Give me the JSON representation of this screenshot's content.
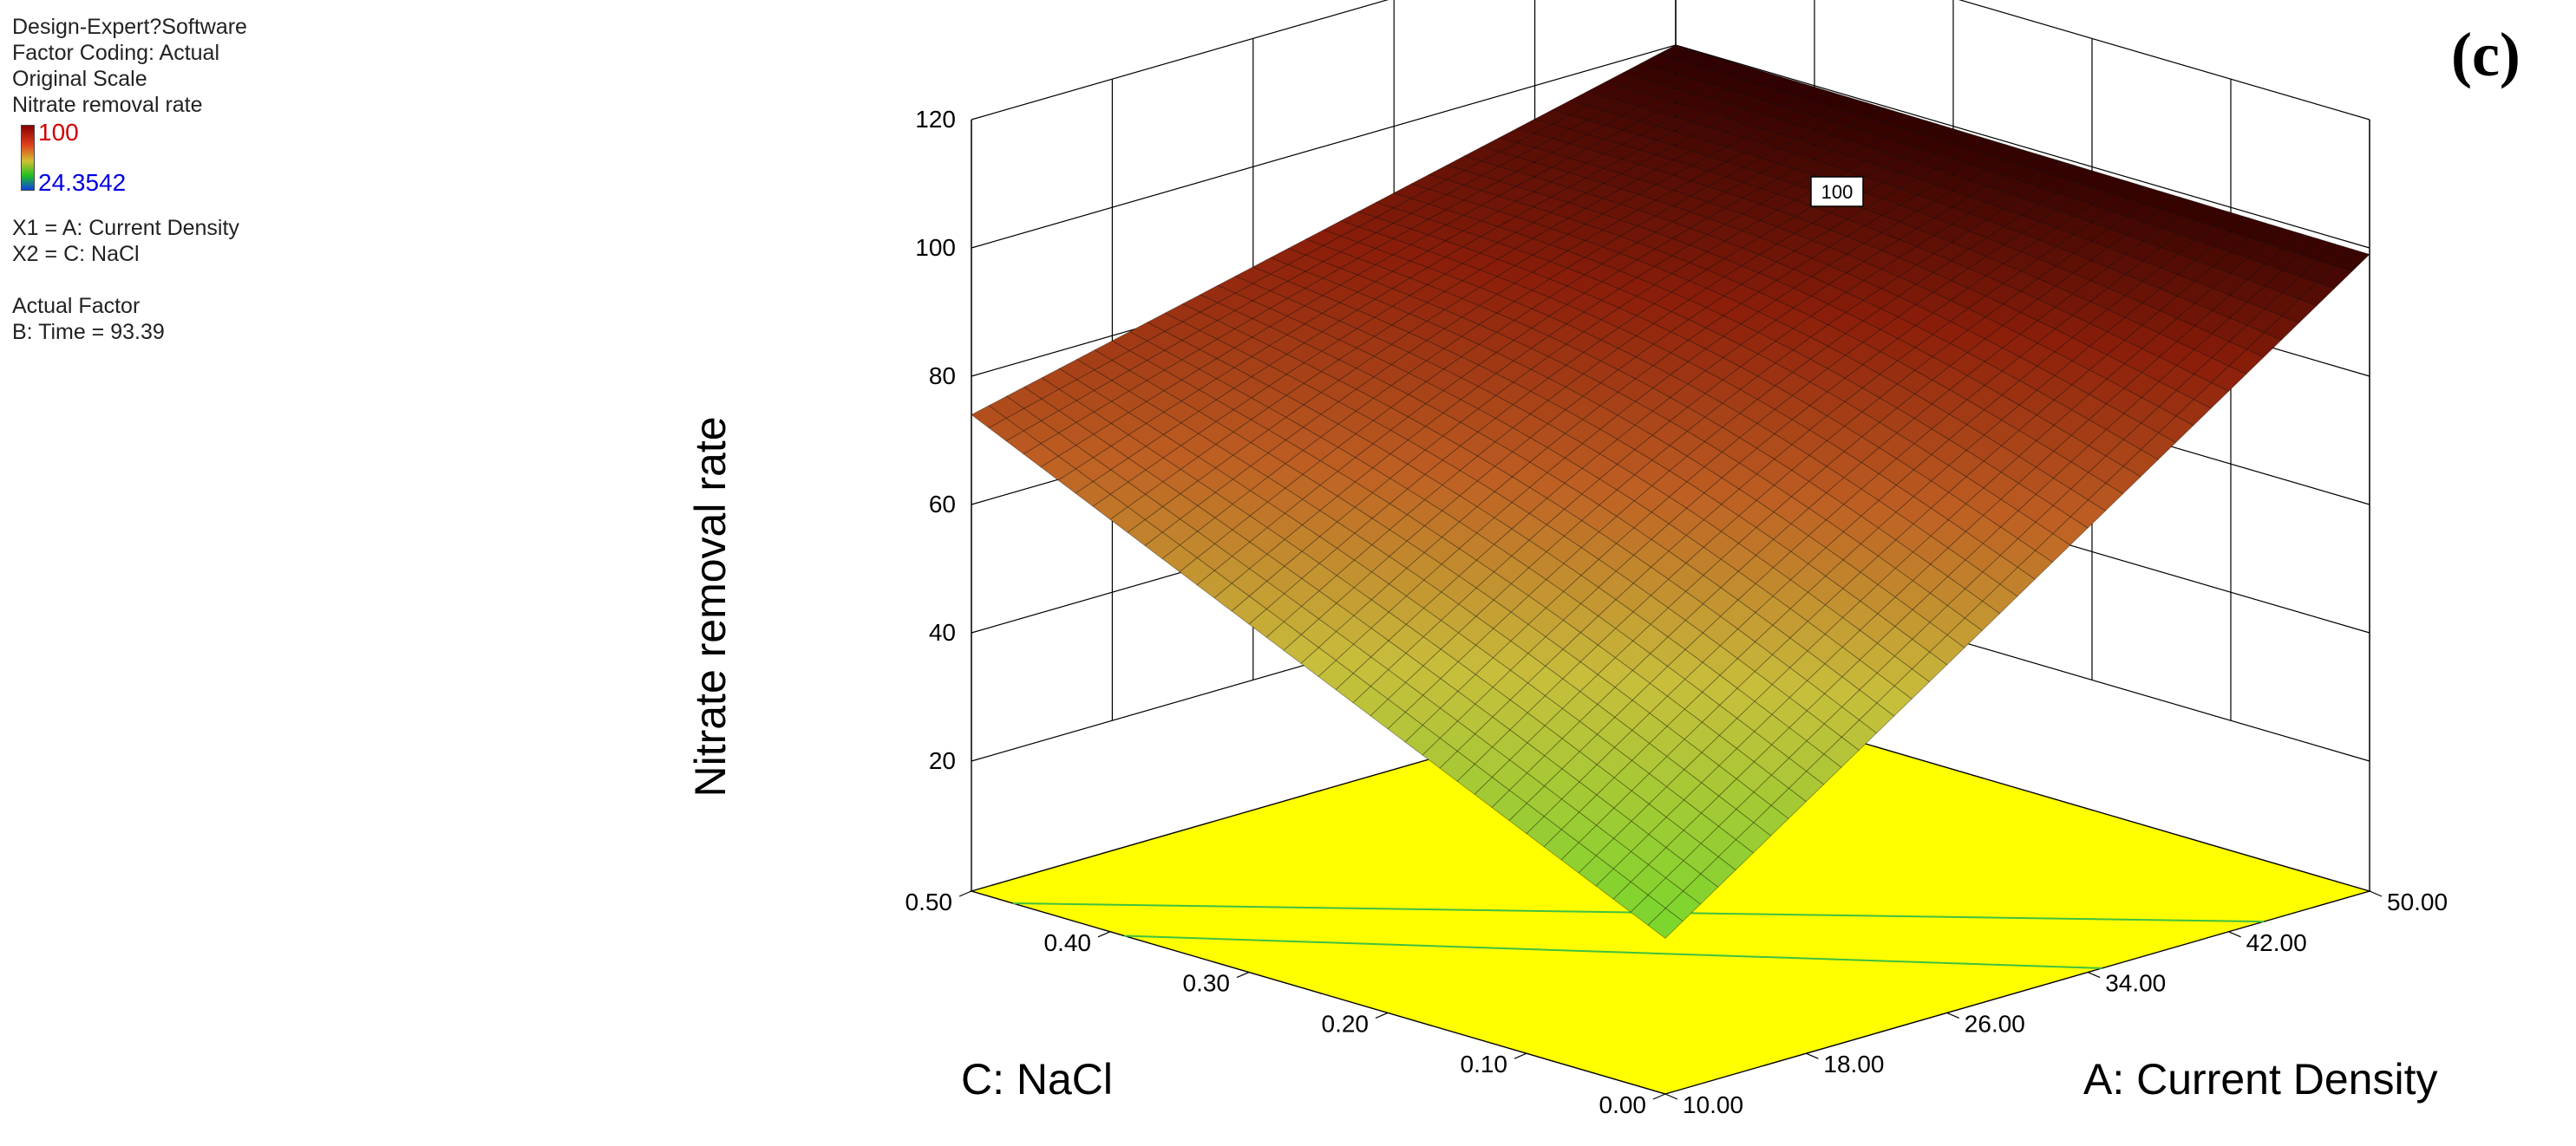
{
  "info": {
    "software": "Design-Expert?Software",
    "coding": "Factor Coding: Actual",
    "scale": "Original Scale",
    "response": "Nitrate removal rate",
    "x1": "X1 = A: Current Density",
    "x2": "X2 = C: NaCl",
    "actual_factor_title": "Actual Factor",
    "actual_factor": "B: Time = 93.39"
  },
  "legend": {
    "max_label": "100",
    "min_label": "24.3542"
  },
  "panel_label": "(c)",
  "chart_data": {
    "type": "surface3d",
    "title": "",
    "zlabel": "Nitrate removal rate",
    "xlabel": "A: Current Density",
    "ylabel": "C: NaCl",
    "x_ticks": [
      "10.00",
      "18.00",
      "26.00",
      "34.00",
      "42.00",
      "50.00"
    ],
    "y_ticks": [
      "0.00",
      "0.10",
      "0.20",
      "0.30",
      "0.40",
      "0.50"
    ],
    "z_ticks": [
      "20",
      "40",
      "60",
      "80",
      "100",
      "120"
    ],
    "xlim": [
      10,
      50
    ],
    "ylim": [
      0,
      0.5
    ],
    "zlim": [
      20,
      120
    ],
    "surface_corners": [
      {
        "x": 10,
        "y": 0,
        "z": 24
      },
      {
        "x": 50,
        "y": 0,
        "z": 99
      },
      {
        "x": 10,
        "y": 0.5,
        "z": 74
      },
      {
        "x": 50,
        "y": 0.5,
        "z": 100
      }
    ],
    "peak_marker": "100",
    "colors": {
      "high": "#8a0000",
      "mid": "#d0c030",
      "low": "#20c020",
      "floor": "#ffff00",
      "contour": "#40c040"
    }
  }
}
